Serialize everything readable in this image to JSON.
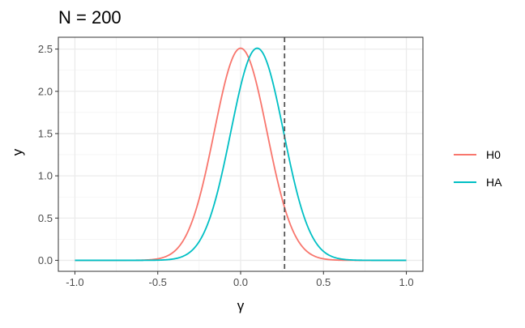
{
  "chart_data": {
    "type": "line",
    "title": "N = 200",
    "xlabel": "γ",
    "ylabel": "y",
    "xlim": [
      -1.1,
      1.1
    ],
    "ylim": [
      -0.13,
      2.64
    ],
    "x_ticks": [
      -1.0,
      -0.5,
      0.0,
      0.5,
      1.0
    ],
    "x_tick_labels": [
      "-1.0",
      "-0.5",
      "0.0",
      "0.5",
      "1.0"
    ],
    "y_ticks": [
      0.0,
      0.5,
      1.0,
      1.5,
      2.0,
      2.5
    ],
    "y_tick_labels": [
      "0.0",
      "0.5",
      "1.0",
      "1.5",
      "2.0",
      "2.5"
    ],
    "grid": true,
    "legend_position": "right",
    "vline": {
      "x": 0.265,
      "style": "dashed",
      "color": "#555555"
    },
    "x_range": [
      -1.0,
      1.0
    ],
    "series": [
      {
        "name": "H0",
        "color": "#F8766D",
        "mean": 0.0,
        "sd": 0.159,
        "peak": 2.51
      },
      {
        "name": "HA",
        "color": "#00BFC4",
        "mean": 0.1,
        "sd": 0.159,
        "peak": 2.51
      }
    ]
  }
}
